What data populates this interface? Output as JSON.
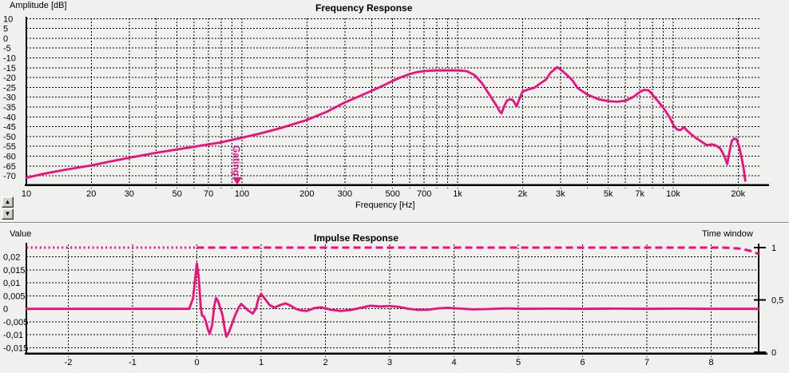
{
  "colors": {
    "curve": "#EE0F7E",
    "grid": "#000000",
    "axis": "#000000",
    "text": "#000000",
    "background": "#F0F0EE",
    "button_face": "#D6D2CA"
  },
  "top_panel": {
    "y_axis_label": "Amplitude [dB]",
    "title": "Frequency Response",
    "x_axis_label": "Frequency [Hz]"
  },
  "controls": {
    "up_icon": "▲",
    "down_icon": "▼"
  },
  "bottom_panel": {
    "y_axis_label": "Value",
    "title": "Impulse Response",
    "right_axis_label": "Time window"
  },
  "chart_data": [
    {
      "type": "line",
      "title": "Frequency Response",
      "xlabel": "Frequency [Hz]",
      "ylabel": "Amplitude [dB]",
      "x_scale": "log",
      "xlim": [
        10,
        25000
      ],
      "ylim": [
        -75,
        10.5
      ],
      "grid": true,
      "legend": "none",
      "y_ticks": [
        [
          10,
          "10"
        ],
        [
          5,
          "5"
        ],
        [
          0,
          "0"
        ],
        [
          -5,
          "-5"
        ],
        [
          -10,
          "-10"
        ],
        [
          -15,
          "-15"
        ],
        [
          -20,
          "-20"
        ],
        [
          -25,
          "-25"
        ],
        [
          -30,
          "-30"
        ],
        [
          -35,
          "-35"
        ],
        [
          -40,
          "-40"
        ],
        [
          -45,
          "-45"
        ],
        [
          -50,
          "-50"
        ],
        [
          -55,
          "-55"
        ],
        [
          -60,
          "-60"
        ],
        [
          -65,
          "-65"
        ],
        [
          -70,
          "-70"
        ]
      ],
      "x_ticks": [
        [
          10,
          "10"
        ],
        [
          20,
          "20"
        ],
        [
          30,
          "30"
        ],
        [
          50,
          "50"
        ],
        [
          70,
          "70"
        ],
        [
          100,
          "100"
        ],
        [
          200,
          "200"
        ],
        [
          300,
          "300"
        ],
        [
          500,
          "500"
        ],
        [
          700,
          "700"
        ],
        [
          1000,
          "1k"
        ],
        [
          2000,
          "2k"
        ],
        [
          3000,
          "3k"
        ],
        [
          5000,
          "5k"
        ],
        [
          7000,
          "7k"
        ],
        [
          10000,
          "10k"
        ],
        [
          20000,
          "20k"
        ]
      ],
      "x_grid": [
        20,
        30,
        40,
        50,
        60,
        70,
        80,
        90,
        100,
        200,
        300,
        400,
        500,
        600,
        700,
        800,
        900,
        1000,
        2000,
        3000,
        4000,
        5000,
        6000,
        7000,
        8000,
        9000,
        10000,
        20000
      ],
      "annotations": [
        {
          "label": "Gating",
          "freq": 95
        }
      ],
      "series": [
        {
          "name": "magnitude_dB",
          "style": "solid",
          "points": [
            [
              10,
              -71
            ],
            [
              12,
              -69
            ],
            [
              15,
              -67
            ],
            [
              20,
              -64.7
            ],
            [
              25,
              -62.5
            ],
            [
              30,
              -60.8
            ],
            [
              35,
              -59.5
            ],
            [
              40,
              -58.3
            ],
            [
              50,
              -56.6
            ],
            [
              60,
              -55.2
            ],
            [
              70,
              -54
            ],
            [
              80,
              -53
            ],
            [
              90,
              -51.7
            ],
            [
              100,
              -50.6
            ],
            [
              120,
              -48.6
            ],
            [
              150,
              -45.8
            ],
            [
              170,
              -44
            ],
            [
              200,
              -41.6
            ],
            [
              250,
              -37.2
            ],
            [
              300,
              -32.7
            ],
            [
              350,
              -29.5
            ],
            [
              400,
              -26.7
            ],
            [
              450,
              -24.2
            ],
            [
              500,
              -21.7
            ],
            [
              550,
              -19.7
            ],
            [
              600,
              -18.2
            ],
            [
              650,
              -17.2
            ],
            [
              700,
              -16.7
            ],
            [
              750,
              -16.5
            ],
            [
              800,
              -16.4
            ],
            [
              900,
              -16.4
            ],
            [
              1000,
              -16.4
            ],
            [
              1100,
              -16.7
            ],
            [
              1200,
              -18.8
            ],
            [
              1300,
              -23
            ],
            [
              1400,
              -28.5
            ],
            [
              1500,
              -33.5
            ],
            [
              1570,
              -37.3
            ],
            [
              1600,
              -38.2
            ],
            [
              1650,
              -34.2
            ],
            [
              1700,
              -31.6
            ],
            [
              1750,
              -31.1
            ],
            [
              1800,
              -31.3
            ],
            [
              1880,
              -34.6
            ],
            [
              1930,
              -31.2
            ],
            [
              2000,
              -27.2
            ],
            [
              2100,
              -26.2
            ],
            [
              2270,
              -25.2
            ],
            [
              2400,
              -23.2
            ],
            [
              2570,
              -21
            ],
            [
              2700,
              -17.5
            ],
            [
              2900,
              -14.7
            ],
            [
              3000,
              -15.8
            ],
            [
              3200,
              -18.5
            ],
            [
              3400,
              -21.2
            ],
            [
              3600,
              -25.3
            ],
            [
              4000,
              -28.7
            ],
            [
              4500,
              -31
            ],
            [
              5000,
              -32
            ],
            [
              5500,
              -32.3
            ],
            [
              6000,
              -31.8
            ],
            [
              6500,
              -30
            ],
            [
              7000,
              -27.4
            ],
            [
              7300,
              -26.3
            ],
            [
              7700,
              -26.5
            ],
            [
              8000,
              -28.6
            ],
            [
              8500,
              -32
            ],
            [
              9000,
              -35.4
            ],
            [
              9600,
              -40
            ],
            [
              10000,
              -44
            ],
            [
              10400,
              -46.4
            ],
            [
              10800,
              -46.8
            ],
            [
              11200,
              -45.3
            ],
            [
              11600,
              -47
            ],
            [
              12000,
              -48.5
            ],
            [
              12700,
              -50.6
            ],
            [
              13500,
              -52.5
            ],
            [
              14300,
              -54.4
            ],
            [
              15100,
              -54
            ],
            [
              15800,
              -54.6
            ],
            [
              16500,
              -56
            ],
            [
              17200,
              -59.5
            ],
            [
              17800,
              -64
            ],
            [
              18300,
              -57
            ],
            [
              18700,
              -52.2
            ],
            [
              19200,
              -51
            ],
            [
              19700,
              -51.5
            ],
            [
              20200,
              -55
            ],
            [
              20700,
              -60
            ],
            [
              21200,
              -66
            ],
            [
              21600,
              -72.5
            ]
          ]
        }
      ]
    },
    {
      "type": "line",
      "title": "Impulse Response",
      "xlabel": "",
      "ylabel": "Value",
      "ylabel_right": "Time window",
      "x_scale": "linear",
      "xlim": [
        -2.65,
        8.74
      ],
      "ylim": [
        -0.017,
        0.0251
      ],
      "ylim_right": [
        0,
        1
      ],
      "grid": true,
      "y_ticks": [
        [
          0.02,
          "0,02"
        ],
        [
          0.015,
          "0,015"
        ],
        [
          0.01,
          "0,01"
        ],
        [
          0.005,
          "0,005"
        ],
        [
          0,
          "0"
        ],
        [
          -0.005,
          "-0,005"
        ],
        [
          -0.01,
          "-0,01"
        ],
        [
          -0.015,
          "-0,015"
        ]
      ],
      "right_ticks": [
        [
          1,
          "1"
        ],
        [
          0.5,
          "0,5"
        ],
        [
          0,
          "0"
        ]
      ],
      "x_ticks": [
        [
          -2,
          "-2"
        ],
        [
          -1,
          "-1"
        ],
        [
          0,
          "0"
        ],
        [
          1,
          "1"
        ],
        [
          2,
          "2"
        ],
        [
          3,
          "3"
        ],
        [
          4,
          "4"
        ],
        [
          5,
          "5"
        ],
        [
          6,
          "6"
        ],
        [
          7,
          "7"
        ],
        [
          8,
          "8"
        ]
      ],
      "series": [
        {
          "name": "impulse",
          "style": "solid",
          "axis": "left",
          "points": [
            [
              -2.65,
              0
            ],
            [
              -0.3,
              0
            ],
            [
              -0.12,
              0
            ],
            [
              -0.06,
              0.004
            ],
            [
              0,
              0.0175
            ],
            [
              0.03,
              0.012
            ],
            [
              0.06,
              0.001
            ],
            [
              0.08,
              -0.0025
            ],
            [
              0.11,
              -0.003
            ],
            [
              0.14,
              -0.0048
            ],
            [
              0.17,
              -0.0078
            ],
            [
              0.2,
              -0.0096
            ],
            [
              0.24,
              -0.006
            ],
            [
              0.27,
              0.001
            ],
            [
              0.3,
              0.0042
            ],
            [
              0.33,
              0.003
            ],
            [
              0.36,
              0.0007
            ],
            [
              0.4,
              -0.0025
            ],
            [
              0.43,
              -0.0072
            ],
            [
              0.46,
              -0.0107
            ],
            [
              0.5,
              -0.009
            ],
            [
              0.55,
              -0.0055
            ],
            [
              0.6,
              -0.0022
            ],
            [
              0.65,
              0.0004
            ],
            [
              0.69,
              0.0019
            ],
            [
              0.74,
              0.0007
            ],
            [
              0.8,
              -0.0006
            ],
            [
              0.87,
              -0.0018
            ],
            [
              0.92,
              0.0002
            ],
            [
              0.96,
              0.0042
            ],
            [
              1,
              0.0057
            ],
            [
              1.05,
              0.0042
            ],
            [
              1.13,
              0.0015
            ],
            [
              1.21,
              0.0005
            ],
            [
              1.3,
              0.0015
            ],
            [
              1.38,
              0.0021
            ],
            [
              1.46,
              0.0012
            ],
            [
              1.54,
              0
            ],
            [
              1.62,
              -0.0006
            ],
            [
              1.71,
              -0.0008
            ],
            [
              1.83,
              0.0003
            ],
            [
              1.93,
              0.0006
            ],
            [
              2,
              0.0002
            ],
            [
              2.1,
              -0.0004
            ],
            [
              2.24,
              -0.0008
            ],
            [
              2.4,
              -0.0004
            ],
            [
              2.55,
              0.0004
            ],
            [
              2.7,
              0.0012
            ],
            [
              2.85,
              0.0009
            ],
            [
              3,
              0.0011
            ],
            [
              3.15,
              0.0007
            ],
            [
              3.3,
              0
            ],
            [
              3.45,
              -0.0004
            ],
            [
              3.6,
              -0.0003
            ],
            [
              3.75,
              0.0002
            ],
            [
              3.9,
              0.0004
            ],
            [
              4.1,
              0.0001
            ],
            [
              4.3,
              -0.0002
            ],
            [
              4.5,
              -0.0001
            ],
            [
              4.8,
              0.0002
            ],
            [
              5.1,
              0
            ],
            [
              5.5,
              0.0001
            ],
            [
              6,
              0
            ],
            [
              6.5,
              0.0001
            ],
            [
              7,
              0
            ],
            [
              7.5,
              0.0001
            ],
            [
              8,
              0
            ],
            [
              8.74,
              0
            ]
          ]
        },
        {
          "name": "time_window_pre",
          "style": "dotted",
          "axis": "right",
          "points": [
            [
              -2.65,
              1
            ],
            [
              0,
              1
            ]
          ]
        },
        {
          "name": "time_window",
          "style": "dashed",
          "axis": "right",
          "points": [
            [
              0,
              1
            ],
            [
              8.2,
              1
            ],
            [
              8.45,
              0.99
            ],
            [
              8.6,
              0.97
            ],
            [
              8.74,
              0.94
            ]
          ]
        }
      ]
    }
  ]
}
